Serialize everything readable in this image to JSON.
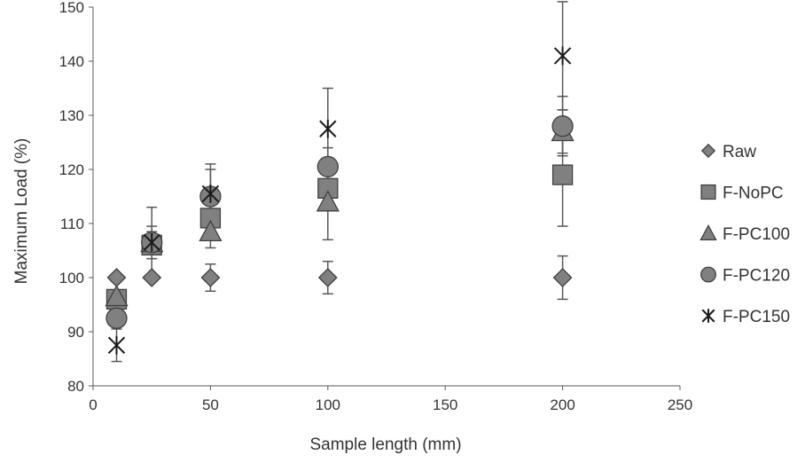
{
  "chart_data": {
    "type": "scatter",
    "xlabel": "Sample length (mm)",
    "ylabel": "Maximum Load (%)",
    "xlim": [
      0,
      250
    ],
    "ylim": [
      80,
      150
    ],
    "x_ticks": [
      "0",
      "50",
      "100",
      "150",
      "200",
      "250"
    ],
    "y_ticks": [
      "80",
      "90",
      "100",
      "110",
      "120",
      "130",
      "140",
      "150"
    ],
    "grid": false,
    "legend_position": "right",
    "series": [
      {
        "name": "Raw",
        "marker": "diamond",
        "points": [
          {
            "x": 10,
            "y": 100,
            "err_low": 0,
            "err_high": 0
          },
          {
            "x": 25,
            "y": 100,
            "err_low": 0,
            "err_high": 0
          },
          {
            "x": 50,
            "y": 100,
            "err_low": 2.5,
            "err_high": 2.5
          },
          {
            "x": 100,
            "y": 100,
            "err_low": 3,
            "err_high": 3
          },
          {
            "x": 200,
            "y": 100,
            "err_low": 4,
            "err_high": 4
          }
        ]
      },
      {
        "name": "F-NoPC",
        "marker": "square",
        "points": [
          {
            "x": 10,
            "y": 96,
            "err_low": 0,
            "err_high": 0
          },
          {
            "x": 25,
            "y": 106,
            "err_low": 1.5,
            "err_high": 1.5
          },
          {
            "x": 50,
            "y": 111,
            "err_low": 3,
            "err_high": 3
          },
          {
            "x": 100,
            "y": 116.5,
            "err_low": 3.5,
            "err_high": 3.5
          },
          {
            "x": 200,
            "y": 119,
            "err_low": 9.5,
            "err_high": 9.5
          }
        ]
      },
      {
        "name": "F-PC100",
        "marker": "triangle",
        "points": [
          {
            "x": 10,
            "y": 96.5,
            "err_low": 0,
            "err_high": 0
          },
          {
            "x": 25,
            "y": 106.5,
            "err_low": 2,
            "err_high": 2
          },
          {
            "x": 50,
            "y": 108.5,
            "err_low": 3,
            "err_high": 3
          },
          {
            "x": 100,
            "y": 114,
            "err_low": 7,
            "err_high": 7
          },
          {
            "x": 200,
            "y": 127,
            "err_low": 4,
            "err_high": 4
          }
        ]
      },
      {
        "name": "F-PC120",
        "marker": "circle",
        "points": [
          {
            "x": 10,
            "y": 92.5,
            "err_low": 0,
            "err_high": 0
          },
          {
            "x": 25,
            "y": 106.5,
            "err_low": 3,
            "err_high": 3
          },
          {
            "x": 50,
            "y": 115,
            "err_low": 5,
            "err_high": 5
          },
          {
            "x": 100,
            "y": 120.5,
            "err_low": 3.5,
            "err_high": 3.5
          },
          {
            "x": 200,
            "y": 128,
            "err_low": 5.5,
            "err_high": 5.5
          }
        ]
      },
      {
        "name": "F-PC150",
        "marker": "star",
        "points": [
          {
            "x": 10,
            "y": 87.5,
            "err_low": 3,
            "err_high": 3
          },
          {
            "x": 25,
            "y": 106.5,
            "err_low": 6.5,
            "err_high": 6.5
          },
          {
            "x": 50,
            "y": 115.5,
            "err_low": 5.5,
            "err_high": 5.5
          },
          {
            "x": 100,
            "y": 127.5,
            "err_low": 7.5,
            "err_high": 7.5
          },
          {
            "x": 200,
            "y": 141,
            "err_low": 10,
            "err_high": 10
          }
        ]
      }
    ]
  },
  "colors": {
    "marker_fill": "#808080",
    "marker_stroke": "#404040",
    "axis": "#595959",
    "text": "#333333",
    "error_bar": "#595959"
  }
}
